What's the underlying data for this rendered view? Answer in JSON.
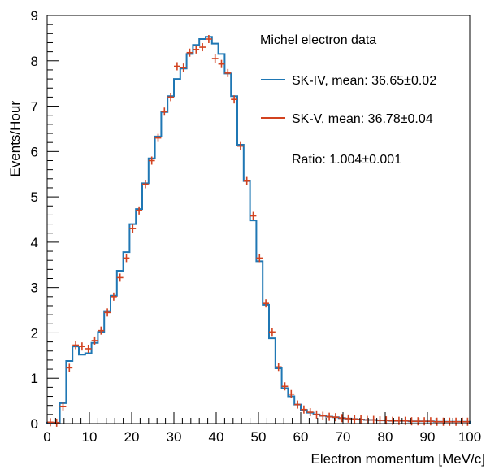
{
  "chart_data": {
    "type": "histogram",
    "title": "",
    "xlabel": "Electron momentum [MeV/c]",
    "ylabel": "Events/Hour",
    "xlim": [
      0,
      100
    ],
    "ylim": [
      0,
      9
    ],
    "x_ticks": [
      "0",
      "10",
      "20",
      "30",
      "40",
      "50",
      "60",
      "70",
      "80",
      "90",
      "100"
    ],
    "y_ticks": [
      "0",
      "1",
      "2",
      "3",
      "4",
      "5",
      "6",
      "7",
      "8",
      "9"
    ],
    "bin_edges": [
      0,
      1.5,
      3,
      4.5,
      6,
      7.5,
      9,
      10.5,
      12,
      13.5,
      15,
      16.5,
      18,
      19.5,
      21,
      22.5,
      24,
      25.5,
      27,
      28.5,
      30,
      31.5,
      33,
      34.5,
      36,
      37.5,
      39,
      40.5,
      42,
      43.5,
      45,
      46.5,
      48,
      49.5,
      51,
      52.5,
      54,
      55.5,
      57,
      58.5,
      60,
      61.5,
      63,
      64.5,
      66,
      67.5,
      69,
      70.5,
      72,
      73.5,
      75,
      76.5,
      78,
      79.5,
      81,
      82.5,
      84,
      85.5,
      87,
      88.5,
      90,
      91.5,
      93,
      94.5,
      96,
      97.5,
      99,
      100
    ],
    "grid": false,
    "legend_position": "top-right",
    "legend_title": "Michel electron data",
    "annotation": "Ratio: 1.004±0.001",
    "series": [
      {
        "name": "SK-IV, mean: 36.65±0.02",
        "color": "#1f77b4",
        "style": "step",
        "values": [
          0.02,
          0.02,
          0.45,
          1.38,
          1.7,
          1.52,
          1.55,
          1.78,
          2.02,
          2.48,
          2.82,
          3.37,
          3.78,
          4.4,
          4.73,
          5.3,
          5.85,
          6.33,
          6.87,
          7.22,
          7.6,
          7.83,
          8.15,
          8.35,
          8.48,
          8.53,
          8.38,
          8.15,
          7.72,
          7.22,
          6.15,
          5.35,
          4.48,
          3.58,
          2.62,
          1.88,
          1.22,
          0.78,
          0.6,
          0.42,
          0.3,
          0.24,
          0.2,
          0.17,
          0.15,
          0.14,
          0.12,
          0.11,
          0.1,
          0.09,
          0.08,
          0.08,
          0.07,
          0.07,
          0.06,
          0.06,
          0.06,
          0.05,
          0.05,
          0.05,
          0.05,
          0.04,
          0.04,
          0.04,
          0.04,
          0.04,
          0.04
        ]
      },
      {
        "name": "SK-V, mean: 36.78±0.04",
        "color": "#d2421f",
        "style": "errorbar",
        "values": [
          0.03,
          0.02,
          0.38,
          1.23,
          1.73,
          1.7,
          1.65,
          1.83,
          2.05,
          2.45,
          2.8,
          3.22,
          3.65,
          4.3,
          4.7,
          5.28,
          5.8,
          6.3,
          6.88,
          7.2,
          7.88,
          7.85,
          8.18,
          8.25,
          8.3,
          8.48,
          8.05,
          7.93,
          7.73,
          7.15,
          6.12,
          5.35,
          4.58,
          3.65,
          2.65,
          2.02,
          1.25,
          0.82,
          0.65,
          0.42,
          0.31,
          0.25,
          0.2,
          0.17,
          0.15,
          0.14,
          0.12,
          0.11,
          0.1,
          0.09,
          0.08,
          0.08,
          0.07,
          0.07,
          0.06,
          0.06,
          0.06,
          0.05,
          0.05,
          0.05,
          0.05,
          0.04,
          0.04,
          0.04,
          0.04,
          0.04,
          0.04
        ]
      }
    ]
  }
}
